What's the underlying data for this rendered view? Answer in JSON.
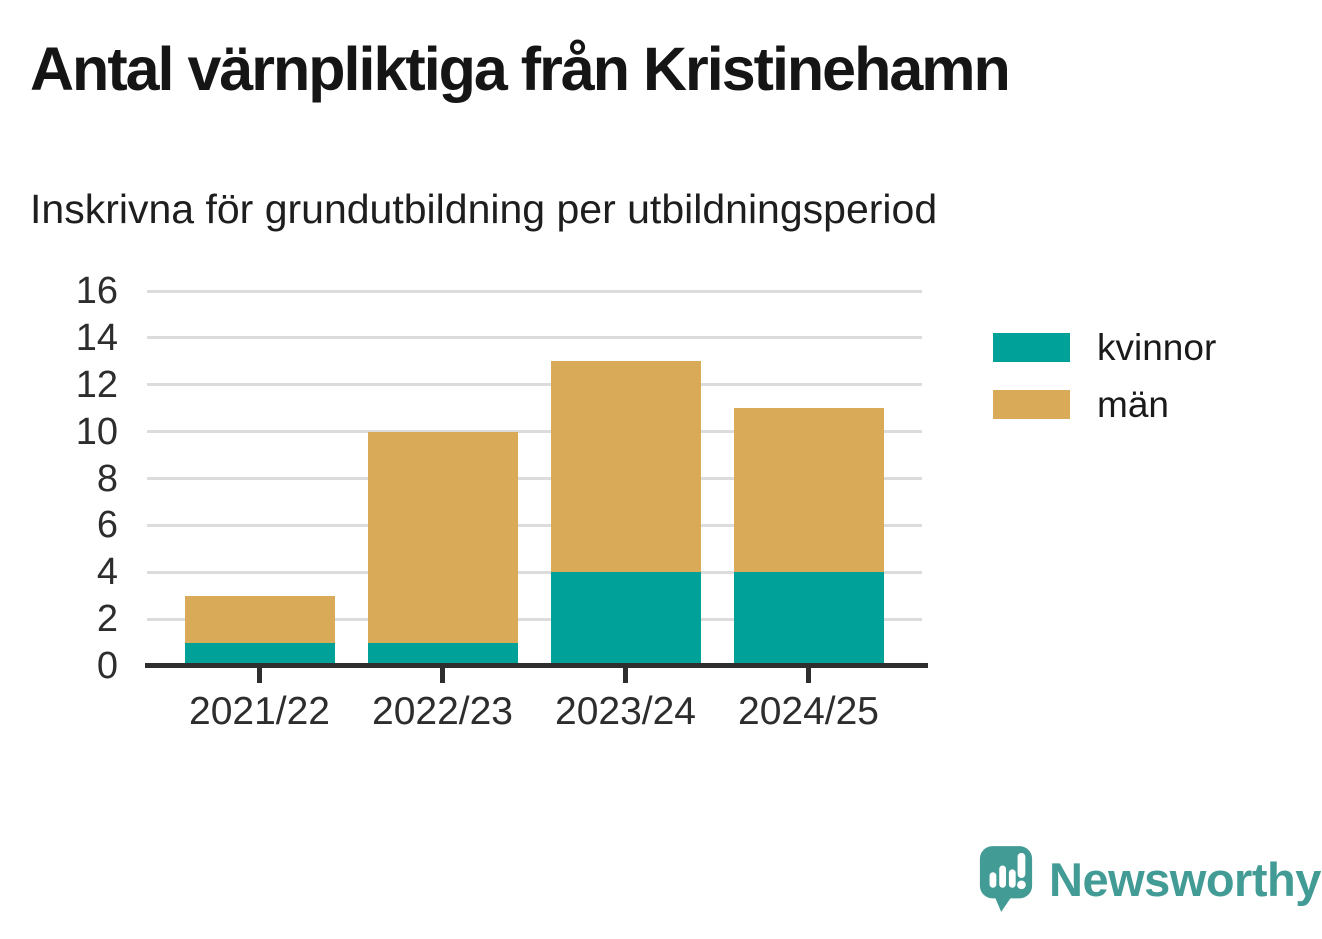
{
  "title": "Antal värnpliktiga från Kristinehamn",
  "subtitle": "Inskrivna för grundutbildning per utbildningsperiod",
  "chart_data": {
    "type": "bar",
    "stacked": true,
    "categories": [
      "2021/22",
      "2022/23",
      "2023/24",
      "2024/25"
    ],
    "series": [
      {
        "name": "kvinnor",
        "color": "#00A199",
        "values": [
          1,
          1,
          4,
          4
        ]
      },
      {
        "name": "män",
        "color": "#D9AB58",
        "values": [
          2,
          9,
          9,
          7
        ]
      }
    ],
    "stacked_totals": [
      3,
      10,
      13,
      11
    ],
    "xlabel": "",
    "ylabel": "",
    "ylim": [
      0,
      16
    ],
    "yticks": [
      0,
      2,
      4,
      6,
      8,
      10,
      12,
      14,
      16
    ],
    "grid": true,
    "legend_position": "right"
  },
  "branding": {
    "logo_text": "Newsworthy",
    "logo_color": "#429B94",
    "logo_icon": "speech-bubble-bar-chart-icon"
  },
  "colors": {
    "kvinnor": "#00A199",
    "man": "#D9AB58",
    "gridline": "#DCDCDC",
    "axis": "#2E2E2E"
  }
}
